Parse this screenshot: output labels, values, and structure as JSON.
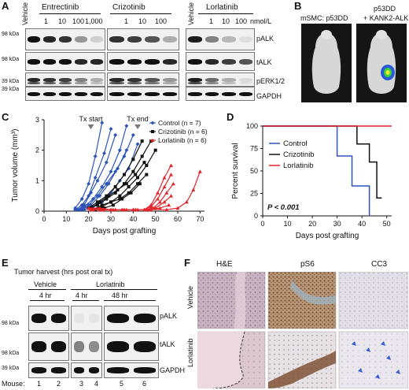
{
  "panels": {
    "A": "A",
    "B": "B",
    "C": "C",
    "D": "D",
    "E": "E",
    "F": "F"
  },
  "panelA": {
    "vehicle_left": "Vehicle",
    "vehicle_right": "Vehicle",
    "groups": [
      "Entrectinib",
      "Crizotinib",
      "Lorlatinib"
    ],
    "doses_ent": [
      "1",
      "10",
      "100",
      "1,000"
    ],
    "doses_criz": [
      "1",
      "10",
      "100"
    ],
    "doses_lor": [
      "1",
      "10",
      "100"
    ],
    "unit": "nmol/L",
    "kda": [
      "98 kDa",
      "98 kDa",
      "39 kDa",
      "39 kDa"
    ],
    "rows": [
      "pALK",
      "tALK",
      "pERK1/2",
      "GAPDH"
    ]
  },
  "panelB": {
    "left_label": "mSMC: p53DD",
    "right_label_1": "p53DD",
    "right_label_2": "+ KANK2-ALK"
  },
  "panelC": {
    "tx_start": "Tx start",
    "tx_end": "Tx end",
    "ylabel": "Tumor volume (mm³)",
    "xlabel": "Days post grafting",
    "legend": [
      "Control (n = 7)",
      "Crizotinib (n = 6)",
      "Lorlatinib (n = 6)"
    ],
    "colors": {
      "control": "#2d55b8",
      "crizotinib": "#111111",
      "lorlatinib": "#e0262b"
    }
  },
  "panelD": {
    "ylabel": "Percent survival",
    "xlabel": "Days post grafting",
    "legend": [
      "Control",
      "Crizotinib",
      "Lorlatinib"
    ],
    "pvalue": "P < 0.001"
  },
  "panelE": {
    "title": "Tumor harvest (hrs post oral tx)",
    "vehicle": "Vehicle",
    "lorlatinib": "Lorlatinib",
    "t4a": "4 hr",
    "t4b": "4 hr",
    "t48": "48 hr",
    "kda": [
      "98 kDa",
      "98 kDa",
      "39 kDa"
    ],
    "rows": [
      "pALK",
      "tALK",
      "GAPDH"
    ],
    "mouse_label": "Mouse:",
    "mice": [
      "1",
      "2",
      "3",
      "4",
      "5",
      "6"
    ]
  },
  "panelF": {
    "cols": [
      "H&E",
      "pS6",
      "CC3"
    ],
    "rows": [
      "Vehicle",
      "Lorlatinib"
    ]
  },
  "chart_data": [
    {
      "type": "line",
      "xlabel": "Days post grafting",
      "ylabel": "Tumor volume (mm³)",
      "xlim": [
        0,
        72
      ],
      "ylim": [
        0,
        3
      ],
      "xticks": [
        0,
        10,
        20,
        30,
        40,
        50,
        60,
        70
      ],
      "yticks": [
        0,
        1,
        2,
        3
      ],
      "series": [
        {
          "name": "Control",
          "group": "control",
          "x": [
            14,
            17,
            20,
            23,
            26
          ],
          "y": [
            0.1,
            0.4,
            0.9,
            1.8,
            2.9
          ]
        },
        {
          "name": "Control",
          "group": "control",
          "x": [
            14,
            17,
            20,
            23,
            27,
            30
          ],
          "y": [
            0.05,
            0.2,
            0.5,
            1.1,
            1.9,
            2.7
          ]
        },
        {
          "name": "Control",
          "group": "control",
          "x": [
            15,
            18,
            21,
            24,
            28,
            32
          ],
          "y": [
            0.05,
            0.2,
            0.6,
            1.0,
            1.6,
            2.5
          ]
        },
        {
          "name": "Control",
          "group": "control",
          "x": [
            15,
            18,
            22,
            26,
            30,
            34,
            37
          ],
          "y": [
            0.05,
            0.15,
            0.4,
            0.8,
            1.3,
            2.0,
            2.8
          ]
        },
        {
          "name": "Control",
          "group": "control",
          "x": [
            16,
            20,
            24,
            28,
            32,
            36,
            40
          ],
          "y": [
            0.05,
            0.2,
            0.5,
            0.9,
            1.3,
            1.8,
            2.5
          ]
        },
        {
          "name": "Control",
          "group": "control",
          "x": [
            17,
            21,
            25,
            29,
            33,
            37
          ],
          "y": [
            0.05,
            0.2,
            0.5,
            0.9,
            1.4,
            2.0
          ]
        },
        {
          "name": "Control",
          "group": "control",
          "x": [
            18,
            22,
            26,
            30,
            34,
            38,
            42
          ],
          "y": [
            0.05,
            0.15,
            0.3,
            0.6,
            1.0,
            1.4,
            2.2
          ]
        },
        {
          "name": "Crizotinib",
          "group": "crizotinib",
          "x": [
            20,
            24,
            28,
            32,
            36,
            40,
            44
          ],
          "y": [
            0.1,
            0.3,
            0.5,
            0.8,
            1.2,
            1.7,
            2.3
          ]
        },
        {
          "name": "Crizotinib",
          "group": "crizotinib",
          "x": [
            20,
            24,
            28,
            32,
            36,
            40,
            44,
            48
          ],
          "y": [
            0.1,
            0.2,
            0.4,
            0.6,
            0.9,
            1.3,
            1.8,
            2.3
          ]
        },
        {
          "name": "Crizotinib",
          "group": "crizotinib",
          "x": [
            21,
            25,
            29,
            33,
            37,
            41,
            45
          ],
          "y": [
            0.1,
            0.3,
            0.5,
            0.7,
            0.9,
            1.2,
            1.6
          ]
        },
        {
          "name": "Crizotinib",
          "group": "crizotinib",
          "x": [
            22,
            26,
            30,
            34,
            38,
            42,
            46,
            50
          ],
          "y": [
            0.05,
            0.2,
            0.3,
            0.5,
            0.8,
            1.1,
            1.5,
            2.0
          ]
        },
        {
          "name": "Crizotinib",
          "group": "crizotinib",
          "x": [
            22,
            26,
            30,
            34,
            38,
            42,
            46
          ],
          "y": [
            0.05,
            0.15,
            0.3,
            0.4,
            0.6,
            0.9,
            1.2
          ]
        },
        {
          "name": "Crizotinib",
          "group": "crizotinib",
          "x": [
            23,
            27,
            31,
            35,
            39,
            43
          ],
          "y": [
            0.05,
            0.1,
            0.2,
            0.4,
            0.6,
            0.9
          ]
        },
        {
          "name": "Lorlatinib",
          "group": "lorlatinib",
          "x": [
            20,
            25,
            30,
            35,
            40,
            45,
            48,
            51,
            54,
            57
          ],
          "y": [
            0.1,
            0.1,
            0.05,
            0.05,
            0.05,
            0.05,
            0.2,
            0.6,
            1.1,
            1.5
          ]
        },
        {
          "name": "Lorlatinib",
          "group": "lorlatinib",
          "x": [
            20,
            25,
            30,
            35,
            40,
            45,
            48,
            51,
            54,
            57
          ],
          "y": [
            0.1,
            0.05,
            0.05,
            0.05,
            0.05,
            0.05,
            0.15,
            0.4,
            0.8,
            1.2
          ]
        },
        {
          "name": "Lorlatinib",
          "group": "lorlatinib",
          "x": [
            21,
            26,
            31,
            36,
            41,
            46,
            49,
            52,
            55,
            58
          ],
          "y": [
            0.05,
            0.05,
            0.05,
            0.05,
            0.05,
            0.05,
            0.1,
            0.3,
            0.6,
            0.9
          ]
        },
        {
          "name": "Lorlatinib",
          "group": "lorlatinib",
          "x": [
            21,
            26,
            31,
            36,
            41,
            46,
            50,
            54,
            57
          ],
          "y": [
            0.05,
            0.05,
            0.05,
            0.05,
            0.05,
            0.05,
            0.1,
            0.3,
            0.5
          ]
        },
        {
          "name": "Lorlatinib",
          "group": "lorlatinib",
          "x": [
            22,
            27,
            32,
            37,
            42,
            47,
            52,
            56
          ],
          "y": [
            0.05,
            0.05,
            0.05,
            0.05,
            0.05,
            0.05,
            0.1,
            0.2
          ]
        },
        {
          "name": "Lorlatinib",
          "group": "lorlatinib",
          "x": [
            22,
            30,
            40,
            48,
            55,
            60,
            64,
            67,
            70
          ],
          "y": [
            0.05,
            0.05,
            0.05,
            0.05,
            0.05,
            0.1,
            0.3,
            0.7,
            1.3
          ]
        }
      ],
      "annotations": [
        {
          "text": "Tx start",
          "x": 21
        },
        {
          "text": "Tx end",
          "x": 42
        }
      ]
    },
    {
      "type": "line",
      "xlabel": "Days post grafting",
      "ylabel": "Percent survival",
      "xlim": [
        0,
        52
      ],
      "ylim": [
        0,
        100
      ],
      "xticks": [
        0,
        10,
        20,
        30,
        40,
        50
      ],
      "yticks": [
        0,
        25,
        50,
        75,
        100
      ],
      "series": [
        {
          "name": "Control",
          "group": "control",
          "x": [
            0,
            30,
            30,
            36,
            36,
            43,
            43
          ],
          "y": [
            100,
            100,
            66.7,
            66.7,
            33.3,
            33.3,
            0
          ]
        },
        {
          "name": "Crizotinib",
          "group": "crizotinib",
          "x": [
            0,
            38,
            38,
            43,
            43,
            46,
            46,
            48
          ],
          "y": [
            100,
            100,
            80,
            80,
            60,
            60,
            20,
            20
          ]
        },
        {
          "name": "Lorlatinib",
          "group": "lorlatinib",
          "x": [
            0,
            52
          ],
          "y": [
            100,
            100
          ]
        }
      ],
      "annotation": "P < 0.001"
    }
  ]
}
